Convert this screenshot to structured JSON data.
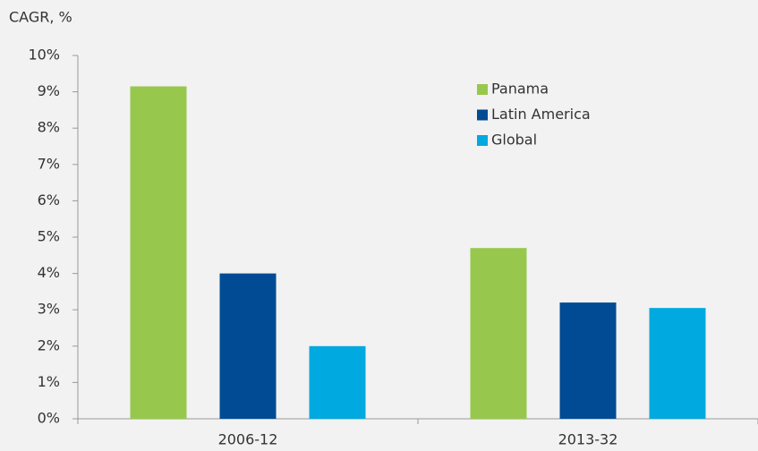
{
  "chart_data": {
    "type": "bar",
    "y_label": "CAGR, %",
    "categories": [
      "2006-12",
      "2013-32"
    ],
    "series": [
      {
        "name": "Panama",
        "color": "#97c84d",
        "values": [
          9.15,
          4.7
        ]
      },
      {
        "name": "Latin America",
        "color": "#004b93",
        "values": [
          4.0,
          3.2
        ]
      },
      {
        "name": "Global",
        "color": "#00a9e0",
        "values": [
          2.0,
          3.05
        ]
      }
    ],
    "ylim": [
      0,
      10
    ],
    "yticks": [
      {
        "value": 0,
        "label": "0%"
      },
      {
        "value": 1,
        "label": "1%"
      },
      {
        "value": 2,
        "label": "2%"
      },
      {
        "value": 3,
        "label": "3%"
      },
      {
        "value": 4,
        "label": "4%"
      },
      {
        "value": 5,
        "label": "5%"
      },
      {
        "value": 6,
        "label": "6%"
      },
      {
        "value": 7,
        "label": "7%"
      },
      {
        "value": 8,
        "label": "8%"
      },
      {
        "value": 9,
        "label": "9%"
      },
      {
        "value": 10,
        "label": "10%"
      }
    ],
    "grid": false,
    "legend": "upper right"
  }
}
